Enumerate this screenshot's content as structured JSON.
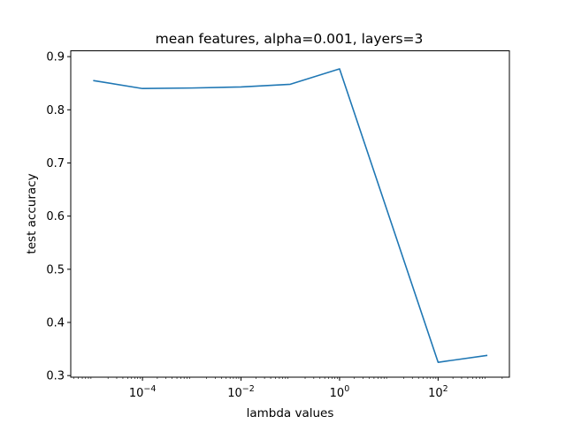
{
  "chart_data": {
    "type": "line",
    "title": "mean features, alpha=0.001, layers=3",
    "xlabel": "lambda values",
    "ylabel": "test accuracy",
    "xscale": "log",
    "xlim": [
      3.5e-06,
      2800
    ],
    "ylim": [
      0.297,
      0.911
    ],
    "grid": false,
    "xticks": [
      {
        "value": 0.0001,
        "base": "10",
        "exp": "−4"
      },
      {
        "value": 0.01,
        "base": "10",
        "exp": "−2"
      },
      {
        "value": 1,
        "base": "10",
        "exp": "0"
      },
      {
        "value": 100,
        "base": "10",
        "exp": "2"
      }
    ],
    "yticks": [
      {
        "value": 0.3,
        "label": "0.3"
      },
      {
        "value": 0.4,
        "label": "0.4"
      },
      {
        "value": 0.5,
        "label": "0.5"
      },
      {
        "value": 0.6,
        "label": "0.6"
      },
      {
        "value": 0.7,
        "label": "0.7"
      },
      {
        "value": 0.8,
        "label": "0.8"
      },
      {
        "value": 0.9,
        "label": "0.9"
      }
    ],
    "series": [
      {
        "color": "#1f77b4",
        "x": [
          1e-05,
          0.0001,
          0.001,
          0.01,
          0.1,
          1,
          100,
          1000
        ],
        "y": [
          0.855,
          0.84,
          0.841,
          0.843,
          0.848,
          0.877,
          0.325,
          0.338
        ]
      }
    ]
  }
}
